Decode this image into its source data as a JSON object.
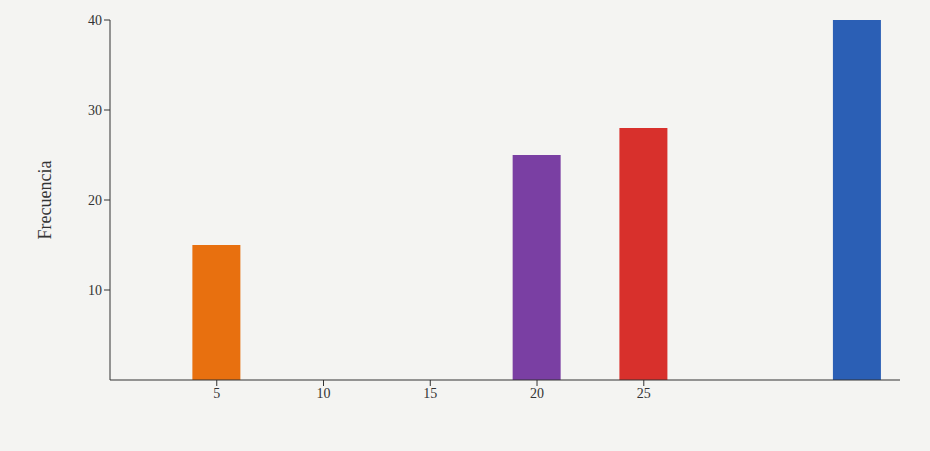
{
  "chart_data": {
    "type": "bar",
    "y_label": "Frecuencia",
    "x": [
      5,
      20,
      25,
      35
    ],
    "values": [
      15,
      25,
      28,
      40
    ],
    "colors": [
      "#e8700f",
      "#7a3fa3",
      "#d8302c",
      "#2b5fb5"
    ],
    "xlim": [
      0,
      37
    ],
    "xticks": [
      5,
      10,
      15,
      20,
      25
    ],
    "ylim": [
      0,
      40
    ],
    "yticks": [
      10,
      20,
      30,
      40
    ],
    "grid": false
  }
}
